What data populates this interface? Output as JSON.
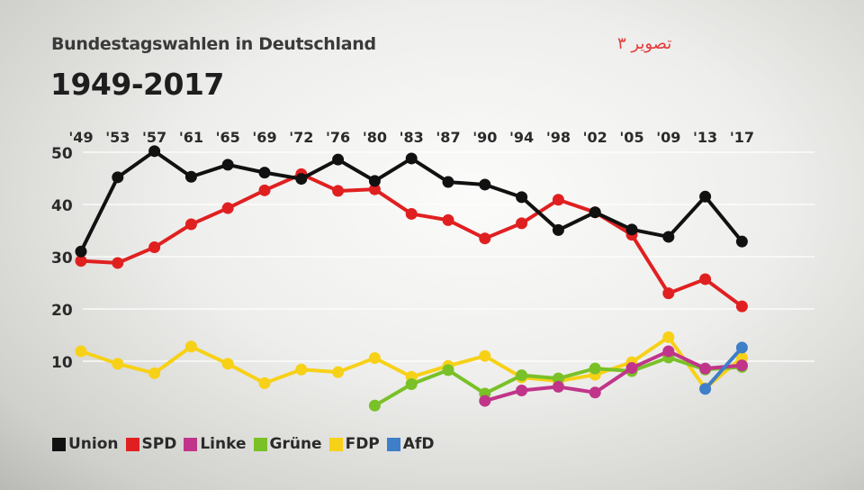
{
  "header": {
    "subtitle": "Bundestagswahlen in Deutschland",
    "title": "1949-2017",
    "watermark": "تصویر ۳"
  },
  "chart_data": {
    "type": "line",
    "title": "1949-2017",
    "subtitle": "Bundestagswahlen in Deutschland",
    "xlabel": "",
    "ylabel": "",
    "categories": [
      "'49",
      "'53",
      "'57",
      "'61",
      "'65",
      "'69",
      "'72",
      "'76",
      "'80",
      "'83",
      "'87",
      "'90",
      "'94",
      "'98",
      "'02",
      "'05",
      "'09",
      "'13",
      "'17"
    ],
    "y_ticks": [
      10,
      20,
      30,
      40,
      50
    ],
    "ylim": [
      0,
      52
    ],
    "grid": true,
    "legend_position": "bottom-left",
    "series": [
      {
        "name": "Union",
        "color": "#111111",
        "values": [
          31.0,
          45.2,
          50.2,
          45.3,
          47.6,
          46.1,
          44.9,
          48.6,
          44.5,
          48.8,
          44.3,
          43.8,
          41.4,
          35.1,
          38.5,
          35.2,
          33.8,
          41.5,
          32.9
        ]
      },
      {
        "name": "SPD",
        "color": "#e02020",
        "values": [
          29.2,
          28.8,
          31.8,
          36.2,
          39.3,
          42.7,
          45.8,
          42.6,
          42.9,
          38.2,
          37.0,
          33.5,
          36.4,
          40.9,
          38.5,
          34.2,
          23.0,
          25.7,
          20.5
        ]
      },
      {
        "name": "Linke",
        "color": "#c0358a",
        "values": [
          null,
          null,
          null,
          null,
          null,
          null,
          null,
          null,
          null,
          null,
          null,
          2.4,
          4.4,
          5.1,
          4.0,
          8.7,
          11.9,
          8.6,
          9.2
        ]
      },
      {
        "name": "Grüne",
        "color": "#79c127",
        "values": [
          null,
          null,
          null,
          null,
          null,
          null,
          null,
          null,
          1.5,
          5.6,
          8.3,
          3.8,
          7.3,
          6.7,
          8.6,
          8.1,
          10.7,
          8.4,
          8.9
        ]
      },
      {
        "name": "FDP",
        "color": "#f7d117",
        "values": [
          11.9,
          9.5,
          7.7,
          12.8,
          9.5,
          5.8,
          8.4,
          7.9,
          10.6,
          7.0,
          9.1,
          11.0,
          6.9,
          6.2,
          7.4,
          9.8,
          14.6,
          4.8,
          10.7
        ]
      },
      {
        "name": "AfD",
        "color": "#3f7ec8",
        "values": [
          null,
          null,
          null,
          null,
          null,
          null,
          null,
          null,
          null,
          null,
          null,
          null,
          null,
          null,
          null,
          null,
          null,
          4.7,
          12.6
        ]
      }
    ]
  }
}
